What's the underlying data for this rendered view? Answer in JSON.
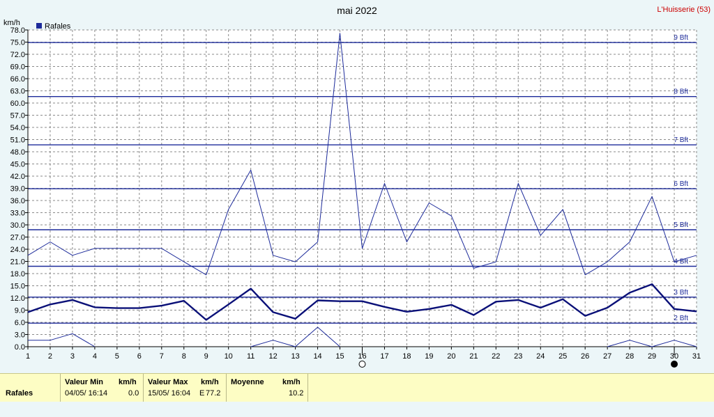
{
  "chart_data": {
    "type": "line",
    "title": "mai 2022",
    "station": "L'Huisserie (53)",
    "ylabel": "km/h",
    "ylim": [
      0,
      78
    ],
    "yticks": [
      "0.0",
      "3.0",
      "6.0",
      "9.0",
      "12.0",
      "15.0",
      "18.0",
      "21.0",
      "24.0",
      "27.0",
      "30.0",
      "33.0",
      "36.0",
      "39.0",
      "42.0",
      "45.0",
      "48.0",
      "51.0",
      "54.0",
      "57.0",
      "60.0",
      "63.0",
      "66.0",
      "69.0",
      "72.0",
      "75.0",
      "78.0"
    ],
    "x": [
      1,
      2,
      3,
      4,
      5,
      6,
      7,
      8,
      9,
      10,
      11,
      12,
      13,
      14,
      15,
      16,
      17,
      18,
      19,
      20,
      21,
      22,
      23,
      24,
      25,
      26,
      27,
      28,
      29,
      30,
      31
    ],
    "legend": {
      "label": "Rafales",
      "position": "top-left"
    },
    "series": [
      {
        "name": "Rafales",
        "role": "max",
        "color": "#1c2a9a",
        "values": [
          22.5,
          25.8,
          22.5,
          24.2,
          24.2,
          24.2,
          24.2,
          20.9,
          17.7,
          33.8,
          43.5,
          22.5,
          20.9,
          25.8,
          77.2,
          24.2,
          40.2,
          25.8,
          35.4,
          32.2,
          19.3,
          20.9,
          40.2,
          27.4,
          33.8,
          17.7,
          20.9,
          25.8,
          37.0,
          20.9,
          22.5
        ]
      },
      {
        "role": "average",
        "color": "#0a1078",
        "values": [
          8.5,
          10.4,
          11.5,
          9.7,
          9.5,
          9.5,
          10.1,
          11.3,
          6.6,
          10.4,
          14.3,
          8.5,
          6.9,
          11.4,
          11.2,
          11.2,
          9.8,
          8.6,
          9.3,
          10.3,
          7.8,
          11.1,
          11.5,
          9.6,
          11.7,
          7.6,
          9.6,
          13.3,
          15.4,
          9.3,
          8.7
        ]
      },
      {
        "role": "min",
        "color": "#1c2a9a",
        "values": [
          1.6,
          1.6,
          3.2,
          0,
          null,
          null,
          null,
          null,
          null,
          null,
          0,
          1.6,
          0,
          4.8,
          0,
          null,
          null,
          null,
          null,
          null,
          null,
          null,
          null,
          null,
          null,
          null,
          0,
          1.6,
          0,
          1.6,
          0
        ]
      }
    ],
    "beaufort": [
      {
        "label": "2 Bft",
        "value": 5.8
      },
      {
        "label": "3 Bft",
        "value": 12.2
      },
      {
        "label": "4 Bft",
        "value": 19.8
      },
      {
        "label": "5 Bft",
        "value": 28.8
      },
      {
        "label": "6 Bft",
        "value": 38.9
      },
      {
        "label": "7 Bft",
        "value": 49.7
      },
      {
        "label": "8 Bft",
        "value": 61.6
      },
      {
        "label": "9 Bft",
        "value": 74.9
      }
    ],
    "moon_phases": [
      {
        "day": 16,
        "phase": "full"
      },
      {
        "day": 30,
        "phase": "new"
      }
    ],
    "grid": true
  },
  "footer": {
    "row_label": "Rafales",
    "min_header": "Valeur Min",
    "min_unit": "km/h",
    "min_date": "04/05/ 16:14",
    "min_value": "0.0",
    "max_header": "Valeur Max",
    "max_unit": "km/h",
    "max_date": "15/05/ 16:04",
    "max_dir": "E",
    "max_value": "77.2",
    "avg_header": "Moyenne",
    "avg_unit": "km/h",
    "avg_value": "10.2"
  }
}
